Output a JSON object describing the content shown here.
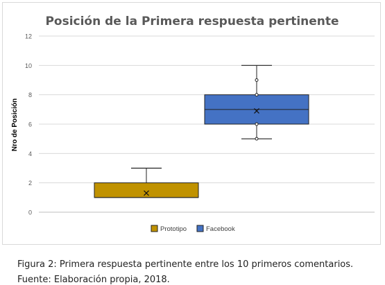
{
  "chart_data": {
    "type": "box",
    "title": "Posición de la Primera respuesta pertinente",
    "ylabel": "Nro de Posición",
    "xlabel": "",
    "ylim": [
      0,
      12
    ],
    "yticks": [
      0,
      2,
      4,
      6,
      8,
      10,
      12
    ],
    "grid": true,
    "legend_position": "bottom",
    "series": [
      {
        "name": "Prototipo",
        "color": "#c09200",
        "min": 1,
        "q1": 1,
        "median": 1,
        "q3": 2,
        "max": 3,
        "mean": 1.3,
        "points": []
      },
      {
        "name": "Facebook",
        "color": "#4472c4",
        "min": 5,
        "q1": 6,
        "median": 7,
        "q3": 8,
        "max": 10,
        "mean": 6.9,
        "points": [
          5,
          6,
          8,
          9
        ]
      }
    ]
  },
  "caption": {
    "line1": "Figura 2: Primera respuesta pertinente entre los 10 primeros comentarios.",
    "line2": "Fuente: Elaboración propia, 2018."
  }
}
